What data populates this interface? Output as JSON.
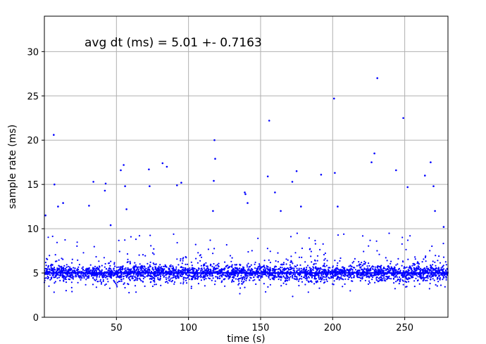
{
  "chart_data": {
    "type": "scatter",
    "title": "",
    "annotation": "avg dt (ms) = 5.01 +- 0.7163",
    "xlabel": "time (s)",
    "ylabel": "sample rate (ms)",
    "xlim": [
      0,
      280
    ],
    "ylim": [
      0,
      34
    ],
    "x_ticks": [
      50,
      100,
      150,
      200,
      250
    ],
    "y_ticks": [
      0,
      5,
      10,
      15,
      20,
      25,
      30
    ],
    "grid": true,
    "marker_color": "#0000ff",
    "series": [
      {
        "summary": {
          "mean": 5.01,
          "std": 0.7163,
          "x_range": [
            0,
            280
          ],
          "points_approx": 14000
        },
        "outliers": [
          [
            0.8,
            11.5
          ],
          [
            6.5,
            20.6
          ],
          [
            7.0,
            15.0
          ],
          [
            9.5,
            12.5
          ],
          [
            13.0,
            12.9
          ],
          [
            31.0,
            12.6
          ],
          [
            34.0,
            15.3
          ],
          [
            42.0,
            14.3
          ],
          [
            42.5,
            15.1
          ],
          [
            46.0,
            10.4
          ],
          [
            53.0,
            16.6
          ],
          [
            55.0,
            17.2
          ],
          [
            56.0,
            14.8
          ],
          [
            57.0,
            12.2
          ],
          [
            72.5,
            16.7
          ],
          [
            73.0,
            14.8
          ],
          [
            82.0,
            17.4
          ],
          [
            85.0,
            17.0
          ],
          [
            92.0,
            14.9
          ],
          [
            95.0,
            15.2
          ],
          [
            118.0,
            20.0
          ],
          [
            118.5,
            17.9
          ],
          [
            117.5,
            15.4
          ],
          [
            117.0,
            12.0
          ],
          [
            139.0,
            14.1
          ],
          [
            139.5,
            13.9
          ],
          [
            141.0,
            12.9
          ],
          [
            155.0,
            15.9
          ],
          [
            156.0,
            22.2
          ],
          [
            160.0,
            14.1
          ],
          [
            164.0,
            12.0
          ],
          [
            172.0,
            15.3
          ],
          [
            175.0,
            16.5
          ],
          [
            178.0,
            12.5
          ],
          [
            192.0,
            16.1
          ],
          [
            201.0,
            24.7
          ],
          [
            201.5,
            16.3
          ],
          [
            203.5,
            12.5
          ],
          [
            227.0,
            17.5
          ],
          [
            229.0,
            18.5
          ],
          [
            231.0,
            27.0
          ],
          [
            244.0,
            16.6
          ],
          [
            249.0,
            22.5
          ],
          [
            252.0,
            14.7
          ],
          [
            264.0,
            16.0
          ],
          [
            268.0,
            17.5
          ],
          [
            270.0,
            14.8
          ],
          [
            271.0,
            12.0
          ],
          [
            277.0,
            10.2
          ]
        ]
      }
    ]
  }
}
